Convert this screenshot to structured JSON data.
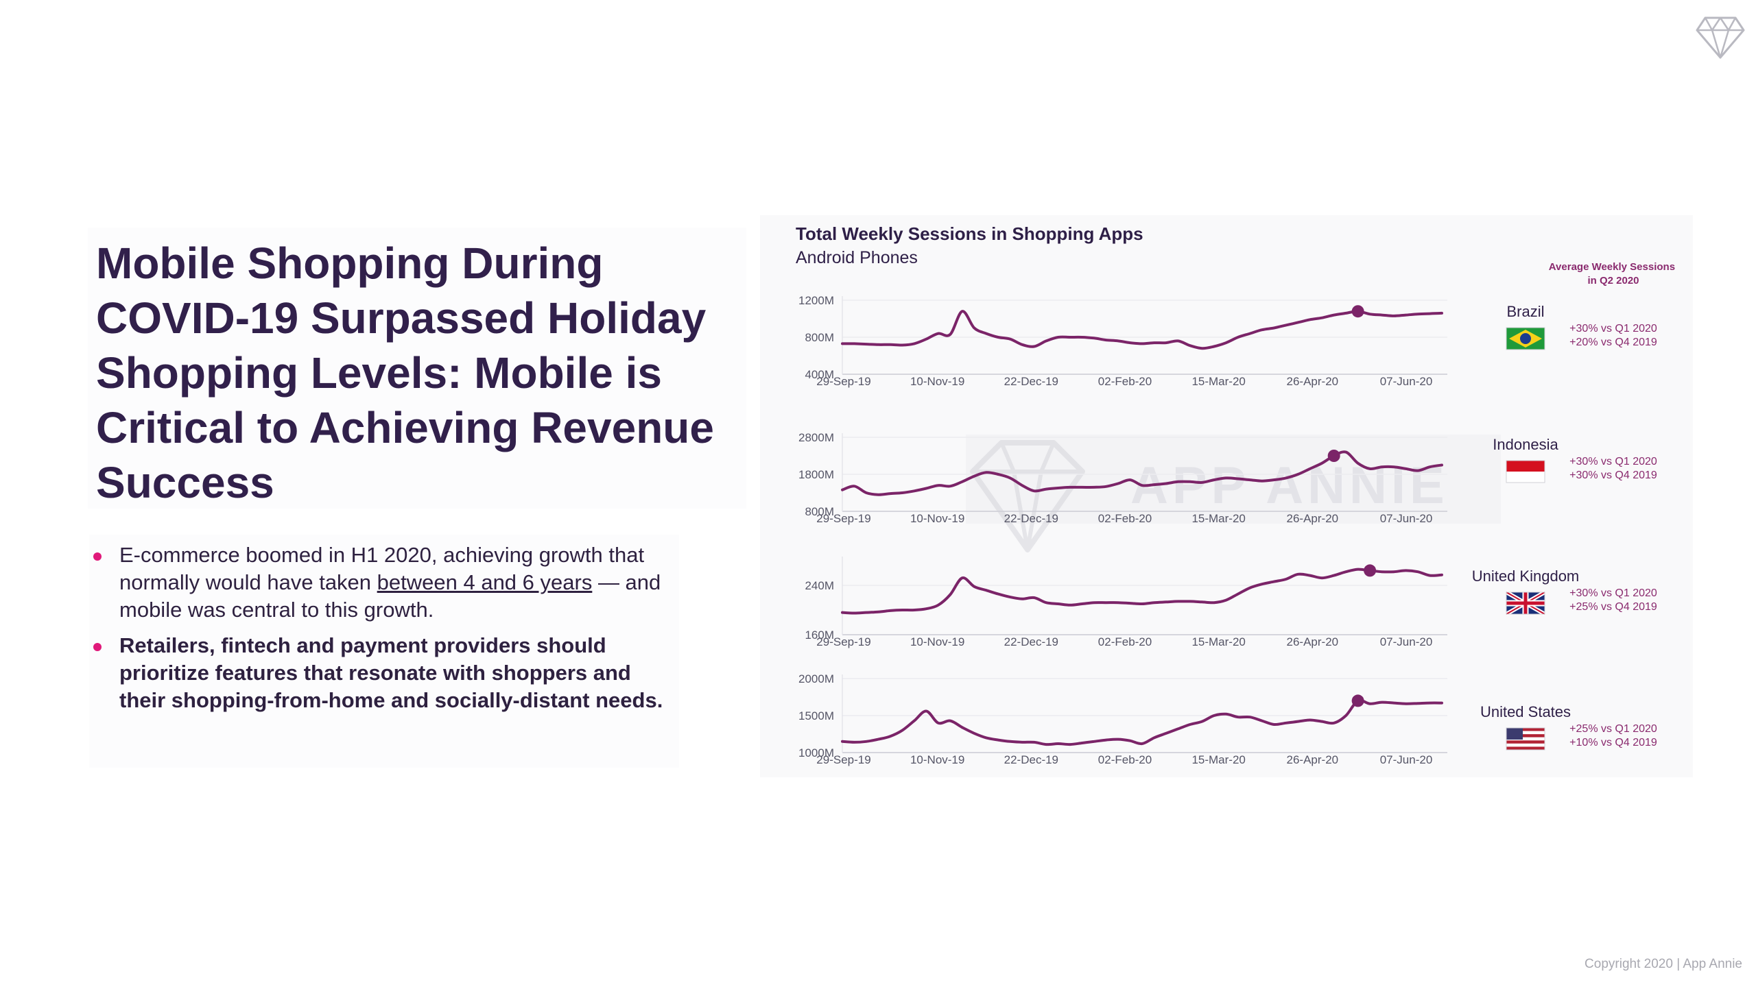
{
  "headline": "Mobile Shopping During COVID-19 Surpassed Holiday Shopping Levels: Mobile is Critical to Achieving Revenue Success",
  "bullets": {
    "b1_pre": "E-commerce boomed in H1 2020, achieving growth that normally would have taken ",
    "b1_link": "between 4 and 6 years",
    "b1_post": " — and mobile was central to this growth.",
    "b2": "Retailers, fintech and payment providers should prioritize features that resonate with shoppers and their shopping-from-home and socially-distant needs."
  },
  "copyright": "Copyright 2020  |  App Annie",
  "watermark": "APP ANNIE",
  "colors": {
    "line": "#7b2468",
    "text": "#31204b",
    "accent": "#e0197a",
    "stat": "#8a2a6e"
  },
  "icons": {
    "logo": "diamond-icon",
    "watermark": "diamond-icon"
  },
  "chart_data": {
    "type": "line",
    "title": "Total Weekly Sessions in Shopping Apps",
    "subtitle": "Android Phones",
    "legend_header": "Average Weekly Sessions in Q2 2020",
    "x_ticks": [
      "29-Sep-19",
      "10-Nov-19",
      "22-Dec-19",
      "02-Feb-20",
      "15-Mar-20",
      "26-Apr-20",
      "07-Jun-20"
    ],
    "x_range": [
      "2019-09-29",
      "2020-06-28"
    ],
    "panels": [
      {
        "country": "Brazil",
        "flag": "brazil-flag-icon",
        "stats": [
          "+30% vs Q1 2020",
          "+20% vs Q4 2019"
        ],
        "ylim": [
          400,
          1200
        ],
        "y_ticks": [
          "1200M",
          "800M",
          "400M"
        ],
        "y_tick_values": [
          1200,
          800,
          400
        ],
        "values": [
          730,
          730,
          725,
          720,
          720,
          715,
          730,
          780,
          840,
          830,
          1080,
          900,
          840,
          800,
          780,
          720,
          700,
          760,
          800,
          800,
          800,
          790,
          770,
          760,
          740,
          730,
          740,
          740,
          760,
          710,
          680,
          700,
          740,
          800,
          840,
          880,
          900,
          930,
          960,
          990,
          1010,
          1040,
          1060,
          1080,
          1050,
          1040,
          1030,
          1040,
          1050,
          1055,
          1060
        ],
        "highlight": 43
      },
      {
        "country": "Indonesia",
        "flag": "indonesia-flag-icon",
        "stats": [
          "+30% vs Q1 2020",
          "+30% vs Q4 2019"
        ],
        "ylim": [
          800,
          2800
        ],
        "y_ticks": [
          "2800M",
          "1800M",
          "800M"
        ],
        "y_tick_values": [
          2800,
          1800,
          800
        ],
        "values": [
          1380,
          1480,
          1300,
          1250,
          1280,
          1300,
          1350,
          1420,
          1500,
          1480,
          1600,
          1750,
          1850,
          1800,
          1700,
          1500,
          1350,
          1400,
          1430,
          1450,
          1450,
          1450,
          1470,
          1550,
          1650,
          1500,
          1520,
          1550,
          1600,
          1600,
          1580,
          1650,
          1700,
          1680,
          1650,
          1620,
          1650,
          1700,
          1800,
          1950,
          2100,
          2300,
          2400,
          2100,
          1950,
          2000,
          2000,
          1950,
          1900,
          2000,
          2050
        ],
        "highlight": 41
      },
      {
        "country": "United Kingdom",
        "flag": "uk-flag-icon",
        "stats": [
          "+30% vs Q1 2020",
          "+25% vs Q4 2019"
        ],
        "ylim": [
          160,
          280
        ],
        "y_ticks": [
          "240M",
          "160M"
        ],
        "y_tick_values": [
          240,
          160
        ],
        "values": [
          196,
          195,
          196,
          197,
          199,
          200,
          200,
          202,
          208,
          225,
          252,
          238,
          232,
          226,
          221,
          218,
          220,
          212,
          210,
          208,
          210,
          212,
          212,
          212,
          211,
          210,
          212,
          213,
          214,
          214,
          213,
          212,
          216,
          226,
          236,
          242,
          246,
          250,
          258,
          256,
          252,
          256,
          262,
          266,
          264,
          262,
          262,
          264,
          262,
          256,
          257
        ],
        "highlight": 44
      },
      {
        "country": "United States",
        "flag": "us-flag-icon",
        "stats": [
          "+25% vs Q1 2020",
          "+10% vs Q4 2019"
        ],
        "ylim": [
          1000,
          2000
        ],
        "y_ticks": [
          "2000M",
          "1500M",
          "1000M"
        ],
        "y_tick_values": [
          2000,
          1500,
          1000
        ],
        "values": [
          1150,
          1140,
          1150,
          1180,
          1220,
          1300,
          1430,
          1560,
          1400,
          1430,
          1340,
          1260,
          1200,
          1170,
          1150,
          1140,
          1140,
          1110,
          1120,
          1110,
          1130,
          1150,
          1170,
          1180,
          1160,
          1120,
          1200,
          1260,
          1320,
          1380,
          1420,
          1500,
          1520,
          1480,
          1480,
          1430,
          1380,
          1400,
          1420,
          1440,
          1420,
          1400,
          1500,
          1700,
          1660,
          1680,
          1670,
          1660,
          1665,
          1670,
          1670
        ],
        "highlight": 43
      }
    ]
  }
}
